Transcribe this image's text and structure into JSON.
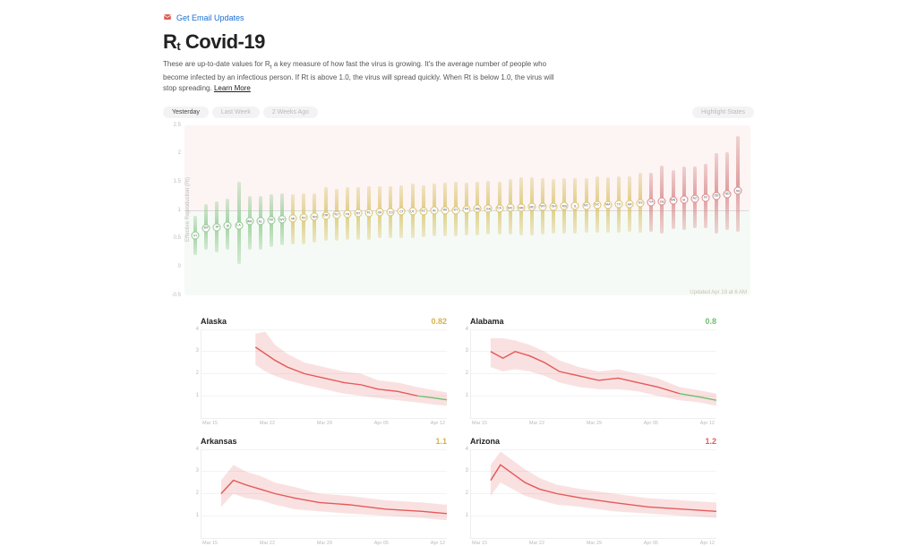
{
  "header": {
    "email_updates_label": "Get Email Updates",
    "title_prefix": "R",
    "title_sub": "t",
    "title_rest": " Covid-19",
    "description_a": "These are up-to-date values for R",
    "description_b": " a key measure of how fast the virus is growing. It's the average number of people who become infected by an infectious person. If Rt is above 1.0, the virus will spread quickly. When Rt is below 1.0, the virus will stop spreading. ",
    "learn_more": "Learn More"
  },
  "toolbar": {
    "tabs": [
      "Yesterday",
      "Last Week",
      "2 Weeks Ago"
    ],
    "active_index": 0,
    "highlight_states": "Highlight States"
  },
  "main_chart": {
    "ylabel": "Effective Reproduction (Rt)",
    "ymin": -0.5,
    "ymax": 2.5,
    "yticks": [
      -0.5,
      0,
      0.5,
      1,
      1.5,
      2,
      2.5
    ],
    "baseline": 1.0,
    "bg_top_color": "#fdf4f4",
    "bg_bottom_color": "#f6faf6",
    "green": "#8fc98f",
    "yellow": "#d9c36a",
    "red": "#d88a8a",
    "updated": "Updated Apr 19 at 6 AM",
    "points": [
      {
        "label": "VT",
        "rt": 0.55,
        "lo": 0.2,
        "hi": 0.9
      },
      {
        "label": "MT",
        "rt": 0.68,
        "lo": 0.3,
        "hi": 1.1
      },
      {
        "label": "HI",
        "rt": 0.7,
        "lo": 0.25,
        "hi": 1.15
      },
      {
        "label": "ID",
        "rt": 0.72,
        "lo": 0.3,
        "hi": 1.2
      },
      {
        "label": "LA",
        "rt": 0.73,
        "lo": 0.05,
        "hi": 1.5
      },
      {
        "label": "WA",
        "rt": 0.8,
        "lo": 0.3,
        "hi": 1.25
      },
      {
        "label": "AL",
        "rt": 0.8,
        "lo": 0.3,
        "hi": 1.25
      },
      {
        "label": "AK",
        "rt": 0.82,
        "lo": 0.35,
        "hi": 1.28
      },
      {
        "label": "WY",
        "rt": 0.83,
        "lo": 0.38,
        "hi": 1.3
      },
      {
        "label": "MI",
        "rt": 0.85,
        "lo": 0.4,
        "hi": 1.28
      },
      {
        "label": "NV",
        "rt": 0.86,
        "lo": 0.4,
        "hi": 1.3
      },
      {
        "label": "NH",
        "rt": 0.88,
        "lo": 0.42,
        "hi": 1.3
      },
      {
        "label": "OR",
        "rt": 0.9,
        "lo": 0.45,
        "hi": 1.4
      },
      {
        "label": "NJ",
        "rt": 0.92,
        "lo": 0.45,
        "hi": 1.38
      },
      {
        "label": "TN",
        "rt": 0.93,
        "lo": 0.48,
        "hi": 1.4
      },
      {
        "label": "NY",
        "rt": 0.94,
        "lo": 0.48,
        "hi": 1.4
      },
      {
        "label": "FL",
        "rt": 0.95,
        "lo": 0.48,
        "hi": 1.42
      },
      {
        "label": "OK",
        "rt": 0.96,
        "lo": 0.5,
        "hi": 1.42
      },
      {
        "label": "CO",
        "rt": 0.96,
        "lo": 0.5,
        "hi": 1.42
      },
      {
        "label": "CT",
        "rt": 0.97,
        "lo": 0.5,
        "hi": 1.44
      },
      {
        "label": "UT",
        "rt": 0.97,
        "lo": 0.5,
        "hi": 1.46
      },
      {
        "label": "SC",
        "rt": 0.98,
        "lo": 0.52,
        "hi": 1.44
      },
      {
        "label": "IN",
        "rt": 0.99,
        "lo": 0.53,
        "hi": 1.46
      },
      {
        "label": "WI",
        "rt": 1.0,
        "lo": 0.54,
        "hi": 1.48
      },
      {
        "label": "KY",
        "rt": 1.0,
        "lo": 0.54,
        "hi": 1.5
      },
      {
        "label": "PA",
        "rt": 1.01,
        "lo": 0.55,
        "hi": 1.48
      },
      {
        "label": "ME",
        "rt": 1.02,
        "lo": 0.55,
        "hi": 1.5
      },
      {
        "label": "GA",
        "rt": 1.02,
        "lo": 0.56,
        "hi": 1.52
      },
      {
        "label": "CA",
        "rt": 1.03,
        "lo": 0.56,
        "hi": 1.5
      },
      {
        "label": "MO",
        "rt": 1.04,
        "lo": 0.56,
        "hi": 1.54
      },
      {
        "label": "NM",
        "rt": 1.04,
        "lo": 0.55,
        "hi": 1.58
      },
      {
        "label": "MD",
        "rt": 1.05,
        "lo": 0.55,
        "hi": 1.58
      },
      {
        "label": "WV",
        "rt": 1.06,
        "lo": 0.56,
        "hi": 1.56
      },
      {
        "label": "OH",
        "rt": 1.06,
        "lo": 0.58,
        "hi": 1.54
      },
      {
        "label": "MS",
        "rt": 1.07,
        "lo": 0.58,
        "hi": 1.56
      },
      {
        "label": "IL",
        "rt": 1.07,
        "lo": 0.58,
        "hi": 1.56
      },
      {
        "label": "NC",
        "rt": 1.08,
        "lo": 0.6,
        "hi": 1.56
      },
      {
        "label": "DC",
        "rt": 1.09,
        "lo": 0.6,
        "hi": 1.6
      },
      {
        "label": "MA",
        "rt": 1.09,
        "lo": 0.6,
        "hi": 1.58
      },
      {
        "label": "TX",
        "rt": 1.1,
        "lo": 0.6,
        "hi": 1.6
      },
      {
        "label": "AR",
        "rt": 1.1,
        "lo": 0.62,
        "hi": 1.6
      },
      {
        "label": "KS",
        "rt": 1.12,
        "lo": 0.6,
        "hi": 1.66
      },
      {
        "label": "VA",
        "rt": 1.14,
        "lo": 0.62,
        "hi": 1.66
      },
      {
        "label": "DE",
        "rt": 1.15,
        "lo": 0.58,
        "hi": 1.78
      },
      {
        "label": "MN",
        "rt": 1.17,
        "lo": 0.66,
        "hi": 1.7
      },
      {
        "label": "IA",
        "rt": 1.18,
        "lo": 0.64,
        "hi": 1.76
      },
      {
        "label": "AZ",
        "rt": 1.2,
        "lo": 0.68,
        "hi": 1.76
      },
      {
        "label": "RI",
        "rt": 1.22,
        "lo": 0.68,
        "hi": 1.82
      },
      {
        "label": "SD",
        "rt": 1.25,
        "lo": 0.58,
        "hi": 2.0
      },
      {
        "label": "ND",
        "rt": 1.28,
        "lo": 0.64,
        "hi": 2.02
      },
      {
        "label": "NE",
        "rt": 1.34,
        "lo": 0.62,
        "hi": 2.3
      }
    ]
  },
  "smalls": {
    "ymin": 0,
    "ymax": 4,
    "yticks": [
      1,
      2,
      3,
      4
    ],
    "x_labels": [
      "Mar 15",
      "Mar 22",
      "Mar 29",
      "Apr 05",
      "Apr 12"
    ],
    "red": "#e55a5a",
    "green": "#6fbf6f",
    "yellow": "#d7b24a",
    "states": [
      {
        "name": "Alaska",
        "value": 0.82,
        "value_color": "#d7b24a",
        "series": [
          {
            "x": 0.22,
            "y": 3.2,
            "lo": 2.4,
            "hi": 3.8
          },
          {
            "x": 0.26,
            "y": 2.9,
            "lo": 2.1,
            "hi": 3.9
          },
          {
            "x": 0.3,
            "y": 2.6,
            "lo": 1.9,
            "hi": 3.3
          },
          {
            "x": 0.35,
            "y": 2.3,
            "lo": 1.7,
            "hi": 2.9
          },
          {
            "x": 0.42,
            "y": 2.0,
            "lo": 1.5,
            "hi": 2.5
          },
          {
            "x": 0.5,
            "y": 1.8,
            "lo": 1.3,
            "hi": 2.3
          },
          {
            "x": 0.58,
            "y": 1.6,
            "lo": 1.1,
            "hi": 2.1
          },
          {
            "x": 0.65,
            "y": 1.5,
            "lo": 1.0,
            "hi": 2.0
          },
          {
            "x": 0.72,
            "y": 1.3,
            "lo": 0.9,
            "hi": 1.7
          },
          {
            "x": 0.8,
            "y": 1.2,
            "lo": 0.8,
            "hi": 1.6
          },
          {
            "x": 0.88,
            "y": 1.0,
            "lo": 0.7,
            "hi": 1.4
          },
          {
            "x": 0.95,
            "y": 0.9,
            "lo": 0.6,
            "hi": 1.25
          },
          {
            "x": 1.0,
            "y": 0.82,
            "lo": 0.55,
            "hi": 1.15
          }
        ]
      },
      {
        "name": "Alabama",
        "value": 0.8,
        "value_color": "#6fbf6f",
        "series": [
          {
            "x": 0.08,
            "y": 3.0,
            "lo": 2.3,
            "hi": 3.6
          },
          {
            "x": 0.13,
            "y": 2.7,
            "lo": 2.1,
            "hi": 3.6
          },
          {
            "x": 0.18,
            "y": 3.0,
            "lo": 2.2,
            "hi": 3.5
          },
          {
            "x": 0.24,
            "y": 2.8,
            "lo": 2.1,
            "hi": 3.3
          },
          {
            "x": 0.3,
            "y": 2.5,
            "lo": 1.9,
            "hi": 3.0
          },
          {
            "x": 0.36,
            "y": 2.1,
            "lo": 1.6,
            "hi": 2.6
          },
          {
            "x": 0.44,
            "y": 1.9,
            "lo": 1.4,
            "hi": 2.3
          },
          {
            "x": 0.52,
            "y": 1.7,
            "lo": 1.3,
            "hi": 2.1
          },
          {
            "x": 0.6,
            "y": 1.8,
            "lo": 1.3,
            "hi": 2.2
          },
          {
            "x": 0.68,
            "y": 1.6,
            "lo": 1.2,
            "hi": 2.0
          },
          {
            "x": 0.76,
            "y": 1.4,
            "lo": 1.0,
            "hi": 1.8
          },
          {
            "x": 0.85,
            "y": 1.1,
            "lo": 0.8,
            "hi": 1.4
          },
          {
            "x": 0.93,
            "y": 0.95,
            "lo": 0.7,
            "hi": 1.25
          },
          {
            "x": 1.0,
            "y": 0.8,
            "lo": 0.55,
            "hi": 1.1
          }
        ]
      },
      {
        "name": "Arkansas",
        "value": 1.1,
        "value_color": "#d7b24a",
        "series": [
          {
            "x": 0.08,
            "y": 2.0,
            "lo": 1.4,
            "hi": 2.6
          },
          {
            "x": 0.13,
            "y": 2.6,
            "lo": 2.0,
            "hi": 3.3
          },
          {
            "x": 0.18,
            "y": 2.4,
            "lo": 1.8,
            "hi": 3.0
          },
          {
            "x": 0.24,
            "y": 2.2,
            "lo": 1.7,
            "hi": 2.8
          },
          {
            "x": 0.3,
            "y": 2.0,
            "lo": 1.5,
            "hi": 2.5
          },
          {
            "x": 0.38,
            "y": 1.8,
            "lo": 1.3,
            "hi": 2.3
          },
          {
            "x": 0.48,
            "y": 1.6,
            "lo": 1.2,
            "hi": 2.0
          },
          {
            "x": 0.6,
            "y": 1.5,
            "lo": 1.1,
            "hi": 1.9
          },
          {
            "x": 0.75,
            "y": 1.3,
            "lo": 1.0,
            "hi": 1.7
          },
          {
            "x": 0.9,
            "y": 1.2,
            "lo": 0.9,
            "hi": 1.6
          },
          {
            "x": 1.0,
            "y": 1.1,
            "lo": 0.8,
            "hi": 1.5
          }
        ]
      },
      {
        "name": "Arizona",
        "value": 1.2,
        "value_color": "#e55a5a",
        "series": [
          {
            "x": 0.08,
            "y": 2.6,
            "lo": 1.9,
            "hi": 3.3
          },
          {
            "x": 0.12,
            "y": 3.3,
            "lo": 2.5,
            "hi": 3.9
          },
          {
            "x": 0.17,
            "y": 2.9,
            "lo": 2.2,
            "hi": 3.5
          },
          {
            "x": 0.22,
            "y": 2.5,
            "lo": 1.9,
            "hi": 3.1
          },
          {
            "x": 0.28,
            "y": 2.2,
            "lo": 1.7,
            "hi": 2.7
          },
          {
            "x": 0.35,
            "y": 2.0,
            "lo": 1.5,
            "hi": 2.4
          },
          {
            "x": 0.45,
            "y": 1.8,
            "lo": 1.4,
            "hi": 2.2
          },
          {
            "x": 0.58,
            "y": 1.6,
            "lo": 1.2,
            "hi": 2.0
          },
          {
            "x": 0.72,
            "y": 1.4,
            "lo": 1.1,
            "hi": 1.8
          },
          {
            "x": 0.86,
            "y": 1.3,
            "lo": 1.0,
            "hi": 1.7
          },
          {
            "x": 1.0,
            "y": 1.2,
            "lo": 0.9,
            "hi": 1.6
          }
        ]
      }
    ]
  }
}
